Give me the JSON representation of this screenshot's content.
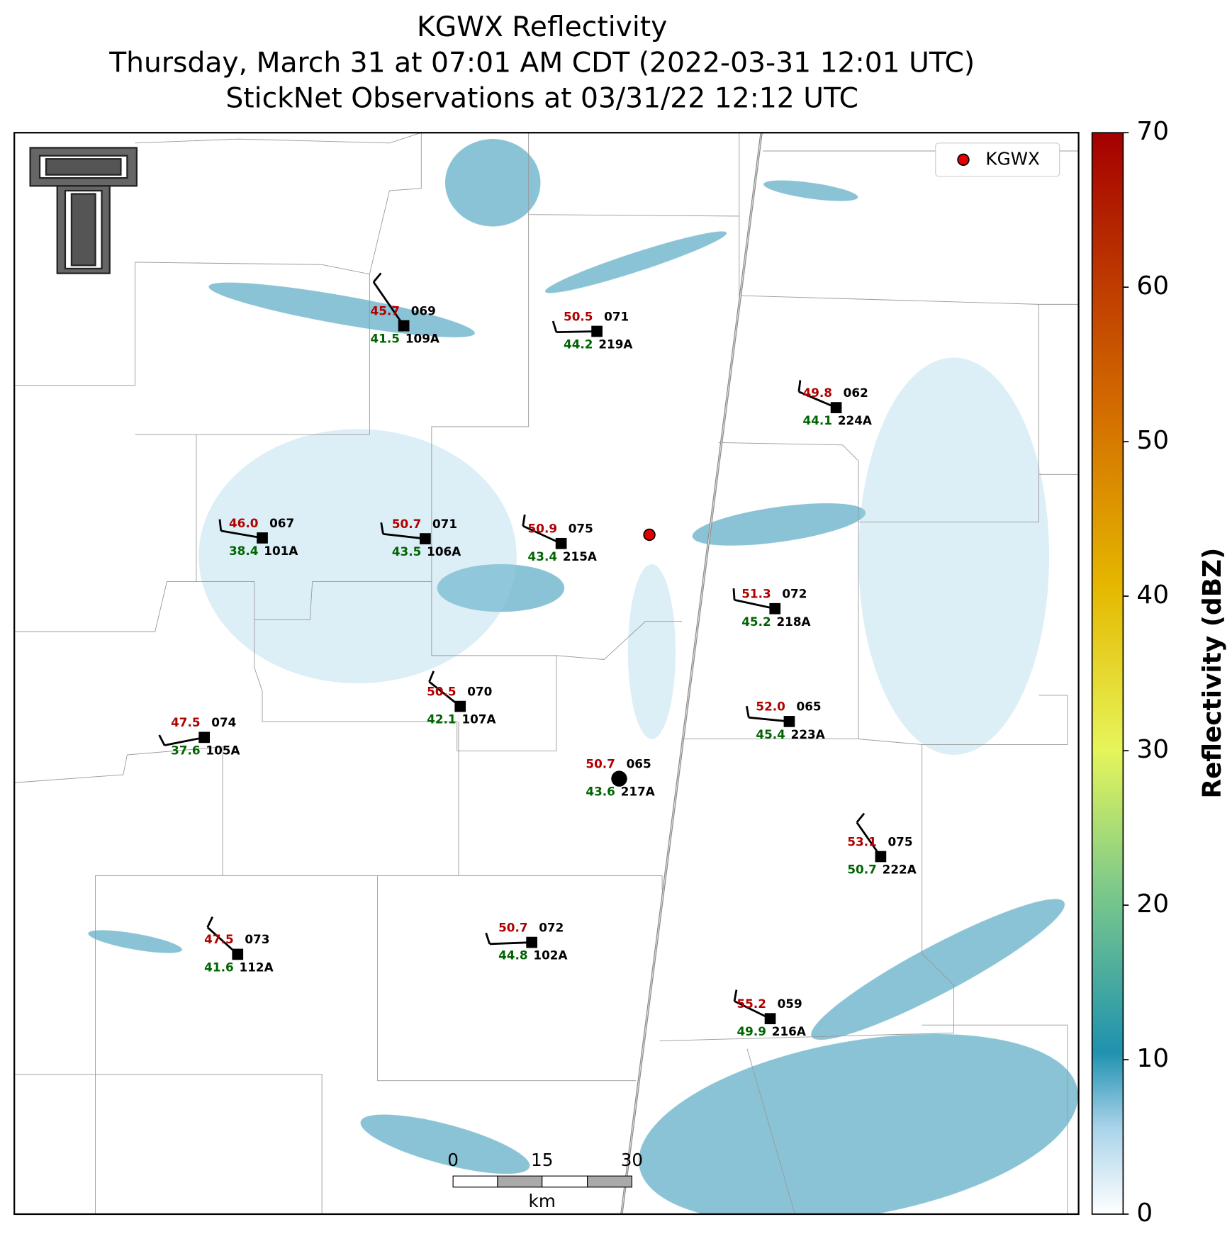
{
  "header": {
    "title": [
      "KGWX Reflectivity",
      "Thursday, March 31 at 07:01 AM CDT (2022-03-31 12:01 UTC)",
      "StickNet Observations at 03/31/22 12:12 UTC"
    ]
  },
  "map": {
    "legend": "KGWX",
    "stations": [
      {
        "id": "109A",
        "temperature": "45.7",
        "dewpoint": "41.5",
        "pressure": "069"
      },
      {
        "id": "219A",
        "temperature": "50.5",
        "dewpoint": "44.2",
        "pressure": "071"
      },
      {
        "id": "224A",
        "temperature": "49.8",
        "dewpoint": "44.1",
        "pressure": "062"
      },
      {
        "id": "101A",
        "temperature": "46.0",
        "dewpoint": "38.4",
        "pressure": "067"
      },
      {
        "id": "106A",
        "temperature": "50.7",
        "dewpoint": "43.5",
        "pressure": "071"
      },
      {
        "id": "215A",
        "temperature": "50.9",
        "dewpoint": "43.4",
        "pressure": "075"
      },
      {
        "id": "218A",
        "temperature": "51.3",
        "dewpoint": "45.2",
        "pressure": "072"
      },
      {
        "id": "107A",
        "temperature": "50.5",
        "dewpoint": "42.1",
        "pressure": "070"
      },
      {
        "id": "223A",
        "temperature": "52.0",
        "dewpoint": "45.4",
        "pressure": "065"
      },
      {
        "id": "105A",
        "temperature": "47.5",
        "dewpoint": "37.6",
        "pressure": "074"
      },
      {
        "id": "217A",
        "temperature": "50.7",
        "dewpoint": "43.6",
        "pressure": "065"
      },
      {
        "id": "222A",
        "temperature": "53.1",
        "dewpoint": "50.7",
        "pressure": "075"
      },
      {
        "id": "102A",
        "temperature": "50.7",
        "dewpoint": "44.8",
        "pressure": "072"
      },
      {
        "id": "112A",
        "temperature": "47.5",
        "dewpoint": "41.6",
        "pressure": "073"
      },
      {
        "id": "216A",
        "temperature": "55.2",
        "dewpoint": "49.9",
        "pressure": "059"
      }
    ],
    "colorbar": {
      "label": "Reflectivity (dBZ)",
      "lim": [
        0,
        70
      ],
      "ticks": [
        0,
        10,
        20,
        30,
        40,
        50,
        60,
        70
      ]
    },
    "scale_bar": {
      "ticks": [
        0,
        15,
        30
      ],
      "unit": "km"
    }
  }
}
